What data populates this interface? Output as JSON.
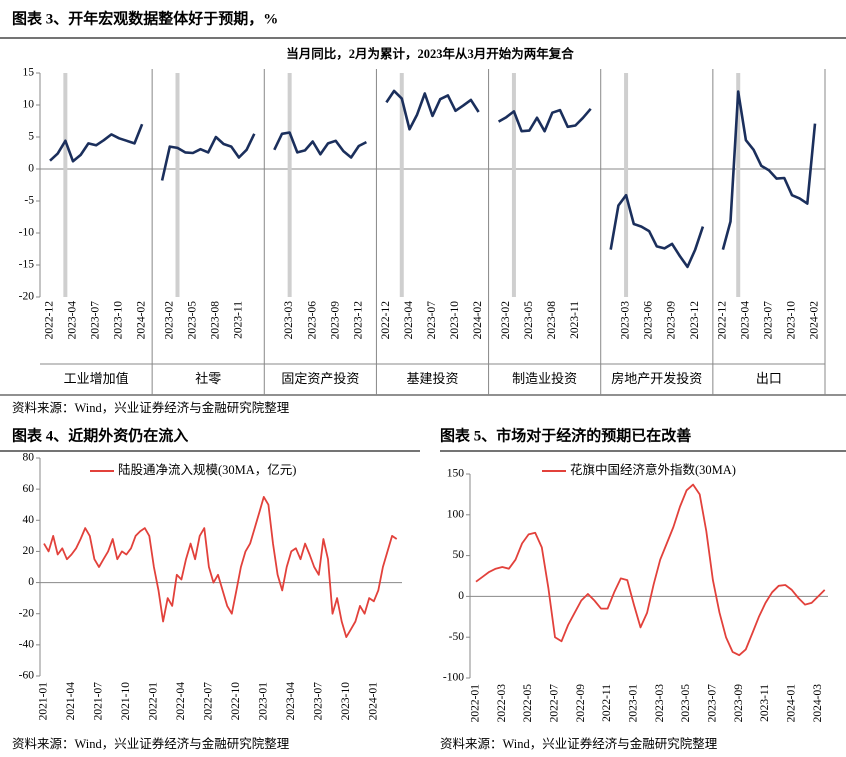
{
  "chart_data": [
    {
      "type": "line",
      "title": "图表 3、开年宏观数据整体好于预期，%",
      "subtitle": "当月同比，2月为累计，2023年从3月开始为两年复合",
      "source": "资料来源：Wind，兴业证券经济与金融研究院整理",
      "color": "#1b2f5c",
      "ylim": [
        -20,
        15
      ],
      "yticks": [
        -20,
        -15,
        -10,
        -5,
        0,
        5,
        10,
        15
      ],
      "panels": [
        {
          "name": "工业增加值",
          "categories": [
            "2022-12",
            null,
            null,
            "2023-04",
            null,
            null,
            "2023-07",
            null,
            null,
            "2023-10",
            null,
            null,
            "2024-02"
          ],
          "values": [
            1.3,
            2.4,
            4.4,
            1.2,
            2.2,
            4.0,
            3.7,
            4.5,
            5.4,
            4.8,
            4.4,
            4.0,
            7.0
          ]
        },
        {
          "name": "社零",
          "categories": [
            null,
            "2023-02",
            null,
            null,
            "2023-05",
            null,
            null,
            "2023-08",
            null,
            null,
            "2023-11",
            null,
            null
          ],
          "values": [
            -1.8,
            3.5,
            3.3,
            2.6,
            2.5,
            3.1,
            2.6,
            5.0,
            3.9,
            3.5,
            1.8,
            3.0,
            5.5
          ]
        },
        {
          "name": "固定资产投资",
          "categories": [
            null,
            null,
            "2023-03",
            null,
            null,
            "2023-06",
            null,
            null,
            "2023-09",
            null,
            null,
            "2023-12",
            null
          ],
          "values": [
            3.0,
            5.5,
            5.7,
            2.6,
            2.9,
            4.3,
            2.3,
            4.0,
            4.4,
            2.8,
            1.8,
            3.6,
            4.2
          ]
        },
        {
          "name": "基建投资",
          "categories": [
            "2022-12",
            null,
            null,
            "2023-04",
            null,
            null,
            "2023-07",
            null,
            null,
            "2023-10",
            null,
            null,
            "2024-02"
          ],
          "values": [
            10.4,
            12.2,
            11.0,
            6.2,
            8.5,
            11.8,
            8.3,
            10.9,
            11.5,
            9.1,
            9.9,
            10.8,
            8.9
          ]
        },
        {
          "name": "制造业投资",
          "categories": [
            null,
            "2023-02",
            null,
            null,
            "2023-05",
            null,
            null,
            "2023-08",
            null,
            null,
            "2023-11",
            null,
            null
          ],
          "values": [
            7.4,
            8.1,
            9.0,
            5.9,
            6.0,
            8.0,
            5.9,
            8.8,
            9.2,
            6.6,
            6.8,
            8.0,
            9.4
          ]
        },
        {
          "name": "房地产开发投资",
          "categories": [
            null,
            null,
            "2023-03",
            null,
            null,
            "2023-06",
            null,
            null,
            "2023-09",
            null,
            null,
            "2023-12",
            null
          ],
          "values": [
            -12.6,
            -5.7,
            -4.1,
            -8.6,
            -9.0,
            -9.7,
            -12.1,
            -12.4,
            -11.7,
            -13.6,
            -15.3,
            -12.6,
            -9.0
          ]
        },
        {
          "name": "出口",
          "categories": [
            "2022-12",
            null,
            null,
            "2023-04",
            null,
            null,
            "2023-07",
            null,
            null,
            "2023-10",
            null,
            null,
            "2024-02"
          ],
          "values": [
            -12.6,
            -8.2,
            12.1,
            4.5,
            3.0,
            0.5,
            -0.2,
            -1.5,
            -1.4,
            -4.1,
            -4.6,
            -5.4,
            7.1
          ]
        }
      ]
    },
    {
      "type": "line",
      "title": "图表 4、近期外资仍在流入",
      "source": "资料来源：Wind，兴业证券经济与金融研究院整理",
      "ylim": [
        -60,
        80
      ],
      "yticks": [
        -60,
        -40,
        -20,
        0,
        20,
        40,
        60,
        80
      ],
      "categories": [
        "2021-01",
        null,
        null,
        null,
        null,
        null,
        "2021-04",
        null,
        null,
        null,
        null,
        null,
        "2021-07",
        null,
        null,
        null,
        null,
        null,
        "2021-10",
        null,
        null,
        null,
        null,
        null,
        "2022-01",
        null,
        null,
        null,
        null,
        null,
        "2022-04",
        null,
        null,
        null,
        null,
        null,
        "2022-07",
        null,
        null,
        null,
        null,
        null,
        "2022-10",
        null,
        null,
        null,
        null,
        null,
        "2023-01",
        null,
        null,
        null,
        null,
        null,
        "2023-04",
        null,
        null,
        null,
        null,
        null,
        "2023-07",
        null,
        null,
        null,
        null,
        null,
        "2023-10",
        null,
        null,
        null,
        null,
        null,
        "2024-01",
        null,
        null,
        null,
        null,
        null
      ],
      "series": [
        {
          "name": "陆股通净流入规模(30MA，亿元)",
          "color": "#e2413b",
          "values": [
            25,
            20,
            30,
            18,
            22,
            15,
            18,
            22,
            28,
            35,
            30,
            15,
            10,
            15,
            20,
            28,
            15,
            20,
            18,
            22,
            30,
            33,
            35,
            30,
            10,
            -5,
            -25,
            -10,
            -15,
            5,
            2,
            15,
            25,
            15,
            30,
            35,
            10,
            0,
            5,
            -5,
            -15,
            -20,
            -5,
            10,
            20,
            25,
            35,
            45,
            55,
            50,
            25,
            5,
            -5,
            10,
            20,
            22,
            15,
            25,
            18,
            10,
            5,
            28,
            15,
            -20,
            -10,
            -25,
            -35,
            -30,
            -25,
            -15,
            -20,
            -10,
            -12,
            -5,
            10,
            20,
            30,
            28
          ]
        }
      ]
    },
    {
      "type": "line",
      "title": "图表 5、市场对于经济的预期已在改善",
      "source": "资料来源：Wind，兴业证券经济与金融研究院整理",
      "ylim": [
        -100,
        150
      ],
      "yticks": [
        -100,
        -50,
        0,
        50,
        100,
        150
      ],
      "categories": [
        "2022-01",
        null,
        null,
        null,
        "2022-03",
        null,
        null,
        null,
        "2022-05",
        null,
        null,
        null,
        "2022-07",
        null,
        null,
        null,
        "2022-09",
        null,
        null,
        null,
        "2022-11",
        null,
        null,
        null,
        "2023-01",
        null,
        null,
        null,
        "2023-03",
        null,
        null,
        null,
        "2023-05",
        null,
        null,
        null,
        "2023-07",
        null,
        null,
        null,
        "2023-09",
        null,
        null,
        null,
        "2023-11",
        null,
        null,
        null,
        "2024-01",
        null,
        null,
        null,
        "2024-03",
        null
      ],
      "series": [
        {
          "name": "花旗中国经济意外指数(30MA)",
          "color": "#e2413b",
          "values": [
            18,
            24,
            30,
            34,
            36,
            34,
            45,
            65,
            76,
            78,
            60,
            10,
            -50,
            -55,
            -35,
            -20,
            -5,
            3,
            -5,
            -15,
            -15,
            5,
            22,
            20,
            -10,
            -38,
            -20,
            15,
            45,
            65,
            85,
            110,
            130,
            137,
            125,
            80,
            20,
            -20,
            -50,
            -68,
            -72,
            -65,
            -45,
            -25,
            -8,
            5,
            13,
            14,
            8,
            -2,
            -10,
            -8,
            0,
            8
          ]
        }
      ]
    }
  ]
}
